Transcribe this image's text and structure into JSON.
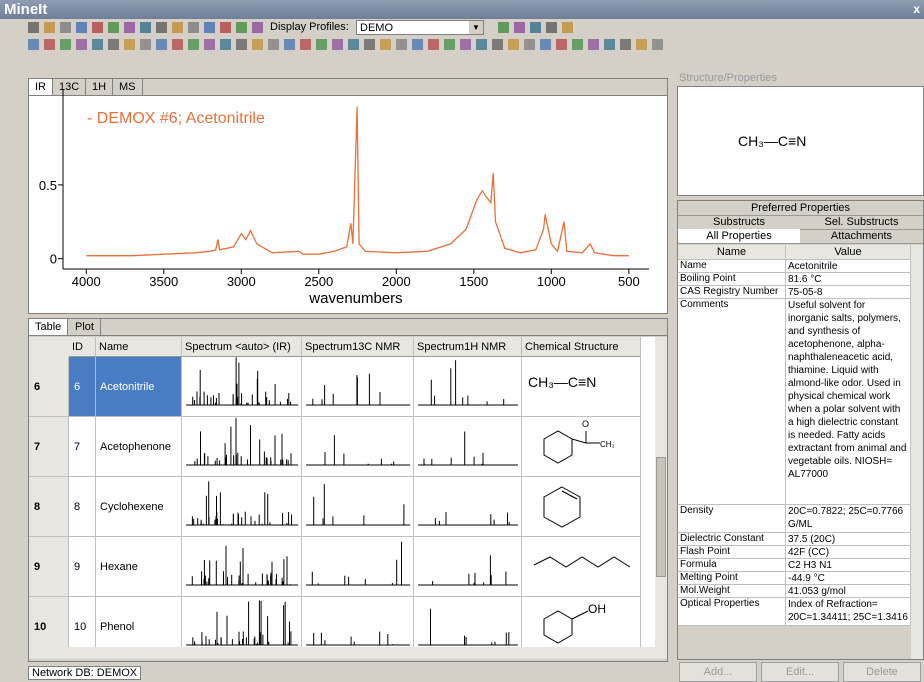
{
  "app": {
    "title": "MineIt",
    "close": "x"
  },
  "toolbar": {
    "profiles_label": "Display Profiles:",
    "profile": "DEMO"
  },
  "spectrum_tabs": [
    "IR",
    "13C",
    "1H",
    "MS"
  ],
  "spectrum": {
    "legend": "- DEMOX #6; Acetonitrile",
    "xlabel": "wavenumbers",
    "color": "#e8703a",
    "xlim": [
      4150,
      370
    ],
    "ylim": [
      -0.07,
      1.15
    ],
    "xticks": [
      4000,
      3500,
      3000,
      2500,
      2000,
      1500,
      1000,
      500
    ],
    "yticks": [
      0,
      0.5
    ],
    "x": [
      4000,
      3700,
      3500,
      3300,
      3200,
      3165,
      3150,
      3140,
      3050,
      3000,
      2970,
      2940,
      2900,
      2800,
      2630,
      2600,
      2500,
      2400,
      2320,
      2293,
      2280,
      2253,
      2240,
      2200,
      2000,
      1800,
      1650,
      1550,
      1480,
      1445,
      1420,
      1390,
      1375,
      1360,
      1300,
      1200,
      1100,
      1050,
      1040,
      1000,
      960,
      918,
      900,
      800,
      750,
      720,
      600,
      500
    ],
    "y": [
      0.02,
      0.02,
      0.03,
      0.04,
      0.05,
      0.06,
      0.13,
      0.06,
      0.08,
      0.17,
      0.13,
      0.19,
      0.1,
      0.04,
      0.05,
      0.03,
      0.03,
      0.05,
      0.08,
      0.24,
      0.1,
      1.03,
      0.1,
      0.05,
      0.04,
      0.05,
      0.1,
      0.2,
      0.4,
      0.46,
      0.42,
      0.38,
      0.58,
      0.25,
      0.07,
      0.04,
      0.06,
      0.2,
      0.3,
      0.1,
      0.05,
      0.25,
      0.05,
      0.04,
      0.1,
      0.04,
      0.02,
      0.02
    ]
  },
  "table_tabs": [
    "Table",
    "Plot"
  ],
  "table": {
    "headers": [
      "ID",
      "Name",
      "Spectrum <auto> (IR)",
      "Spectrum13C NMR",
      "Spectrum1H NMR",
      "Chemical Structure"
    ],
    "rows": [
      {
        "row": 6,
        "id": 6,
        "name": "Acetonitrile",
        "labels": [
          "CH₃—C≡N"
        ]
      },
      {
        "row": 7,
        "id": 7,
        "name": "Acetophenone",
        "labels": [
          "O",
          "CH₃"
        ]
      },
      {
        "row": 8,
        "id": 8,
        "name": "Cyclohexene",
        "labels": []
      },
      {
        "row": 9,
        "id": 9,
        "name": "Hexane",
        "labels": []
      },
      {
        "row": 10,
        "id": 10,
        "name": "Phenol",
        "labels": [
          "OH"
        ]
      }
    ]
  },
  "properties": {
    "title": "Structure/Properties",
    "formula": "CH₃—C≡N",
    "tabs": [
      "Preferred Properties",
      "Substructs",
      "Sel. Substructs",
      "All Properties",
      "Attachments"
    ],
    "headers": [
      "Name",
      "Value"
    ],
    "rows": [
      [
        "Name",
        "Acetonitrile"
      ],
      [
        "Boiling Point",
        "81.6 °C"
      ],
      [
        "CAS Registry Number",
        "75-05-8"
      ],
      [
        "Comments",
        "Useful solvent for inorganic salts, polymers, and synthesis of acetophenone, alpha-naphthaleneacetic acid, thiamine. Liquid with almond-like odor. Used in physical chemical work when a polar solvent with a high dielectric constant is needed. Fatty acids extractant from animal and vegetable oils. NIOSH= AL77000"
      ],
      [
        "Density",
        "20C=0.7822; 25C=0.7766 G/ML"
      ],
      [
        "Dielectric Constant",
        "37.5 (20C)"
      ],
      [
        "Flash Point",
        "42F (CC)"
      ],
      [
        "Formula",
        "C2 H3 N1"
      ],
      [
        "Melting Point",
        "-44.9 °C"
      ],
      [
        "Mol.Weight",
        "41.053 g/mol"
      ],
      [
        "Optical Properties",
        "Index of Refraction= 20C=1.34411; 25C=1.3416"
      ]
    ],
    "buttons": [
      "Add...",
      "Edit...",
      "Delete"
    ]
  },
  "status": "Network DB: DEMOX"
}
